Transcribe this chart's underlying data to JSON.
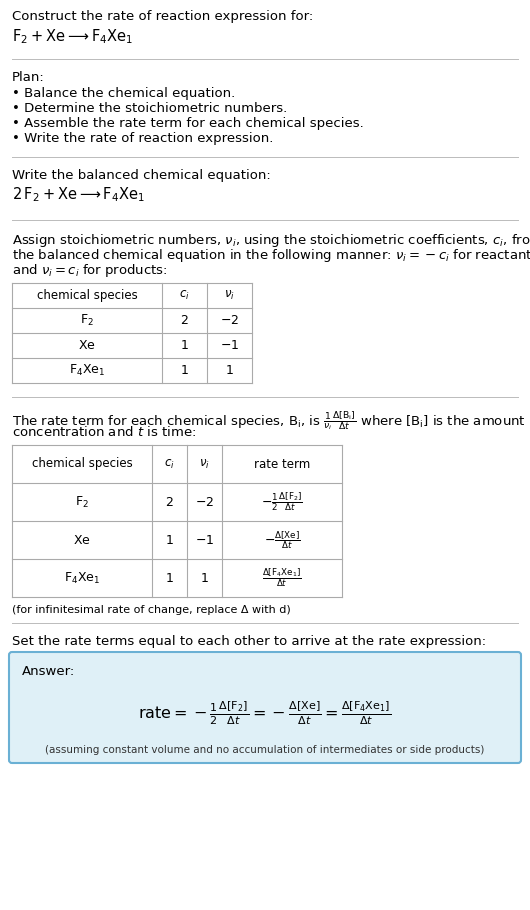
{
  "title_line1": "Construct the rate of reaction expression for:",
  "title_line2_latex": "$\\mathrm{F_2 + Xe \\longrightarrow F_4Xe_1}$",
  "plan_header": "Plan:",
  "plan_items": [
    "• Balance the chemical equation.",
    "• Determine the stoichiometric numbers.",
    "• Assemble the rate term for each chemical species.",
    "• Write the rate of reaction expression."
  ],
  "balanced_eq_header": "Write the balanced chemical equation:",
  "balanced_eq_latex": "$\\mathrm{2\\,F_2 + Xe \\longrightarrow F_4Xe_1}$",
  "stoich_lines": [
    "Assign stoichiometric numbers, $\\nu_i$, using the stoichiometric coefficients, $c_i$, from",
    "the balanced chemical equation in the following manner: $\\nu_i = -c_i$ for reactants",
    "and $\\nu_i = c_i$ for products:"
  ],
  "table1_headers": [
    "chemical species",
    "$c_i$",
    "$\\nu_i$"
  ],
  "table1_rows": [
    [
      "$\\mathrm{F_2}$",
      "2",
      "$-2$"
    ],
    [
      "$\\mathrm{Xe}$",
      "1",
      "$-1$"
    ],
    [
      "$\\mathrm{F_4Xe_1}$",
      "1",
      "1"
    ]
  ],
  "rate_lines": [
    "The rate term for each chemical species, $\\mathrm{B_i}$, is $\\frac{1}{\\nu_i}\\frac{\\Delta[\\mathrm{B_i}]}{\\Delta t}$ where $[\\mathrm{B_i}]$ is the amount",
    "concentration and $t$ is time:"
  ],
  "table2_headers": [
    "chemical species",
    "$c_i$",
    "$\\nu_i$",
    "rate term"
  ],
  "table2_rows": [
    [
      "$\\mathrm{F_2}$",
      "2",
      "$-2$",
      "$-\\frac{1}{2}\\frac{\\Delta[\\mathrm{F_2}]}{\\Delta t}$"
    ],
    [
      "$\\mathrm{Xe}$",
      "1",
      "$-1$",
      "$-\\frac{\\Delta[\\mathrm{Xe}]}{\\Delta t}$"
    ],
    [
      "$\\mathrm{F_4Xe_1}$",
      "1",
      "1",
      "$\\frac{\\Delta[\\mathrm{F_4Xe_1}]}{\\Delta t}$"
    ]
  ],
  "infinitesimal_note": "(for infinitesimal rate of change, replace Δ with d)",
  "set_equal_text": "Set the rate terms equal to each other to arrive at the rate expression:",
  "answer_label": "Answer:",
  "answer_latex": "$\\mathrm{rate} = -\\frac{1}{2}\\frac{\\Delta[\\mathrm{F_2}]}{\\Delta t} = -\\frac{\\Delta[\\mathrm{Xe}]}{\\Delta t} = \\frac{\\Delta[\\mathrm{F_4Xe_1}]}{\\Delta t}$",
  "answer_note": "(assuming constant volume and no accumulation of intermediates or side products)",
  "answer_box_color": "#dff0f7",
  "answer_box_border": "#6ab0d4",
  "separator_color": "#bbbbbb",
  "bg_color": "#ffffff",
  "text_color": "#000000"
}
